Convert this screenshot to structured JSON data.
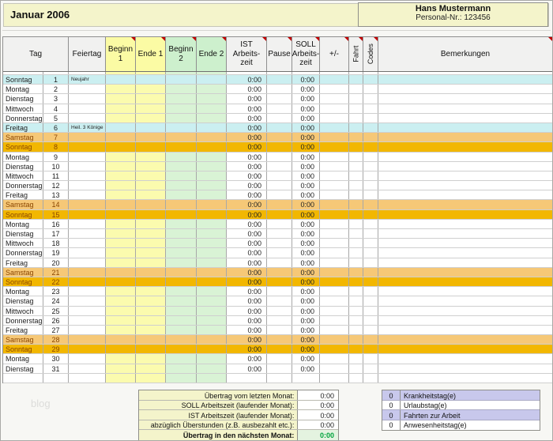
{
  "title": {
    "month": "Januar 2006",
    "employee_name": "Hans Mustermann",
    "personal_nr": "Personal-Nr.: 123456"
  },
  "watermark": "blog",
  "colors": {
    "band_yellow": "#f4f4cb",
    "cell_yellow": "#fbfbae",
    "cell_green": "#d9f3d5",
    "holiday_row": "#cbeff1",
    "saturday_row": "#f6c877",
    "sunday_row": "#f2b701",
    "lavender": "#c8c8ec",
    "note_red": "#c00000",
    "final_green_text": "#00a33c"
  },
  "table": {
    "header": [
      {
        "key": "tag",
        "label": "Tag"
      },
      {
        "key": "feiertag",
        "label": "Feiertag"
      },
      {
        "key": "beginn-1",
        "label": "Beginn\n1"
      },
      {
        "key": "ende-1",
        "label": "Ende 1"
      },
      {
        "key": "beginn-2",
        "label": "Beginn\n2"
      },
      {
        "key": "ende-2",
        "label": "Ende 2"
      },
      {
        "key": "ist-arbeitszeit",
        "label": "IST\nArbeits-\nzeit"
      },
      {
        "key": "pause",
        "label": "Pause"
      },
      {
        "key": "soll-arbeitszeit",
        "label": "SOLL\nArbeits-\nzeit"
      },
      {
        "key": "plus-minus",
        "label": "+/-"
      },
      {
        "key": "fahrt",
        "label": "Fahrt"
      },
      {
        "key": "codes",
        "label": "Codes"
      },
      {
        "key": "bemerkungen",
        "label": "Bemerkungen"
      }
    ],
    "rows": [
      {
        "day": "Sonntag",
        "num": "1",
        "holiday": "Neujahr",
        "type": "holiday",
        "ist": "0:00",
        "soll": "0:00"
      },
      {
        "day": "Montag",
        "num": "2",
        "holiday": "",
        "type": "weekday",
        "ist": "0:00",
        "soll": "0:00"
      },
      {
        "day": "Dienstag",
        "num": "3",
        "holiday": "",
        "type": "weekday",
        "ist": "0:00",
        "soll": "0:00"
      },
      {
        "day": "Mittwoch",
        "num": "4",
        "holiday": "",
        "type": "weekday",
        "ist": "0:00",
        "soll": "0:00"
      },
      {
        "day": "Donnerstag",
        "num": "5",
        "holiday": "",
        "type": "weekday",
        "ist": "0:00",
        "soll": "0:00"
      },
      {
        "day": "Freitag",
        "num": "6",
        "holiday": "Heil. 3 Könige",
        "type": "holiday",
        "ist": "0:00",
        "soll": "0:00"
      },
      {
        "day": "Samstag",
        "num": "7",
        "holiday": "",
        "type": "saturday",
        "ist": "0:00",
        "soll": "0:00"
      },
      {
        "day": "Sonntag",
        "num": "8",
        "holiday": "",
        "type": "sunday",
        "ist": "0:00",
        "soll": "0:00"
      },
      {
        "day": "Montag",
        "num": "9",
        "holiday": "",
        "type": "weekday",
        "ist": "0:00",
        "soll": "0:00"
      },
      {
        "day": "Dienstag",
        "num": "10",
        "holiday": "",
        "type": "weekday",
        "ist": "0:00",
        "soll": "0:00"
      },
      {
        "day": "Mittwoch",
        "num": "11",
        "holiday": "",
        "type": "weekday",
        "ist": "0:00",
        "soll": "0:00"
      },
      {
        "day": "Donnerstag",
        "num": "12",
        "holiday": "",
        "type": "weekday",
        "ist": "0:00",
        "soll": "0:00"
      },
      {
        "day": "Freitag",
        "num": "13",
        "holiday": "",
        "type": "weekday",
        "ist": "0:00",
        "soll": "0:00"
      },
      {
        "day": "Samstag",
        "num": "14",
        "holiday": "",
        "type": "saturday",
        "ist": "0:00",
        "soll": "0:00"
      },
      {
        "day": "Sonntag",
        "num": "15",
        "holiday": "",
        "type": "sunday",
        "ist": "0:00",
        "soll": "0:00"
      },
      {
        "day": "Montag",
        "num": "16",
        "holiday": "",
        "type": "weekday",
        "ist": "0:00",
        "soll": "0:00"
      },
      {
        "day": "Dienstag",
        "num": "17",
        "holiday": "",
        "type": "weekday",
        "ist": "0:00",
        "soll": "0:00"
      },
      {
        "day": "Mittwoch",
        "num": "18",
        "holiday": "",
        "type": "weekday",
        "ist": "0:00",
        "soll": "0:00"
      },
      {
        "day": "Donnerstag",
        "num": "19",
        "holiday": "",
        "type": "weekday",
        "ist": "0:00",
        "soll": "0:00"
      },
      {
        "day": "Freitag",
        "num": "20",
        "holiday": "",
        "type": "weekday",
        "ist": "0:00",
        "soll": "0:00"
      },
      {
        "day": "Samstag",
        "num": "21",
        "holiday": "",
        "type": "saturday",
        "ist": "0:00",
        "soll": "0:00"
      },
      {
        "day": "Sonntag",
        "num": "22",
        "holiday": "",
        "type": "sunday",
        "ist": "0:00",
        "soll": "0:00"
      },
      {
        "day": "Montag",
        "num": "23",
        "holiday": "",
        "type": "weekday",
        "ist": "0:00",
        "soll": "0:00"
      },
      {
        "day": "Dienstag",
        "num": "24",
        "holiday": "",
        "type": "weekday",
        "ist": "0:00",
        "soll": "0:00"
      },
      {
        "day": "Mittwoch",
        "num": "25",
        "holiday": "",
        "type": "weekday",
        "ist": "0:00",
        "soll": "0:00"
      },
      {
        "day": "Donnerstag",
        "num": "26",
        "holiday": "",
        "type": "weekday",
        "ist": "0:00",
        "soll": "0:00"
      },
      {
        "day": "Freitag",
        "num": "27",
        "holiday": "",
        "type": "weekday",
        "ist": "0:00",
        "soll": "0:00"
      },
      {
        "day": "Samstag",
        "num": "28",
        "holiday": "",
        "type": "saturday",
        "ist": "0:00",
        "soll": "0:00"
      },
      {
        "day": "Sonntag",
        "num": "29",
        "holiday": "",
        "type": "sunday",
        "ist": "0:00",
        "soll": "0:00"
      },
      {
        "day": "Montag",
        "num": "30",
        "holiday": "",
        "type": "weekday",
        "ist": "0:00",
        "soll": "0:00"
      },
      {
        "day": "Dienstag",
        "num": "31",
        "holiday": "",
        "type": "weekday",
        "ist": "0:00",
        "soll": "0:00"
      }
    ],
    "blank_row": {
      "day": "",
      "num": "",
      "holiday": "",
      "type": "blank",
      "ist": "",
      "soll": ""
    }
  },
  "summary": {
    "rows": [
      {
        "label": "Übertrag vom letzten Monat:",
        "value": "0:00",
        "final": false
      },
      {
        "label": "SOLL Arbeitszeit (laufender Monat):",
        "value": "0:00",
        "final": false
      },
      {
        "label": "IST Arbeitszeit (laufender Monat):",
        "value": "0:00",
        "final": false
      },
      {
        "label": "abzüglich Überstunden (z.B. ausbezahlt etc.):",
        "value": "0:00",
        "final": false
      },
      {
        "label": "Übertrag in den nächsten Monat:",
        "value": "0:00",
        "final": true
      }
    ]
  },
  "stats": {
    "rows": [
      {
        "value": "0",
        "label": "Krankheitstag(e)",
        "shaded": true
      },
      {
        "value": "0",
        "label": "Urlaubstag(e)",
        "shaded": false
      },
      {
        "value": "0",
        "label": "Fahrten zur Arbeit",
        "shaded": true
      },
      {
        "value": "0",
        "label": "Anwesenheitstag(e)",
        "shaded": false
      }
    ]
  }
}
